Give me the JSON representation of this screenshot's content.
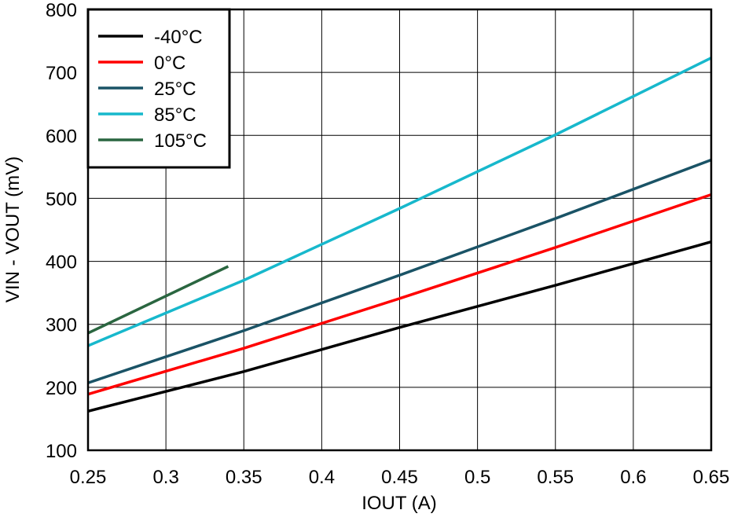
{
  "chart_data": {
    "type": "line",
    "title": "",
    "xlabel": "IOUT (A)",
    "ylabel": "VIN - VOUT (mV)",
    "xlim": [
      0.25,
      0.65
    ],
    "ylim": [
      100,
      800
    ],
    "xticks": [
      "0.25",
      "0.3",
      "0.35",
      "0.4",
      "0.45",
      "0.5",
      "0.55",
      "0.6",
      "0.65"
    ],
    "yticks": [
      "100",
      "200",
      "300",
      "400",
      "500",
      "600",
      "700",
      "800"
    ],
    "grid": true,
    "legend_position": "top-left",
    "series": [
      {
        "name": "-40°C",
        "color": "#000000",
        "x": [
          0.25,
          0.35,
          0.45,
          0.55,
          0.65
        ],
        "y": [
          162,
          225,
          295,
          362,
          431
        ]
      },
      {
        "name": "0°C",
        "color": "#ff0000",
        "x": [
          0.25,
          0.35,
          0.45,
          0.55,
          0.65
        ],
        "y": [
          189,
          262,
          341,
          422,
          506
        ]
      },
      {
        "name": "25°C",
        "color": "#1a5366",
        "x": [
          0.25,
          0.35,
          0.45,
          0.55,
          0.65
        ],
        "y": [
          207,
          290,
          378,
          468,
          561
        ]
      },
      {
        "name": "85°C",
        "color": "#17b8cc",
        "x": [
          0.25,
          0.35,
          0.45,
          0.55,
          0.65
        ],
        "y": [
          266,
          370,
          484,
          601,
          723
        ]
      },
      {
        "name": "105°C",
        "color": "#2a6640",
        "x": [
          0.25,
          0.34
        ],
        "y": [
          286,
          392
        ]
      }
    ]
  }
}
